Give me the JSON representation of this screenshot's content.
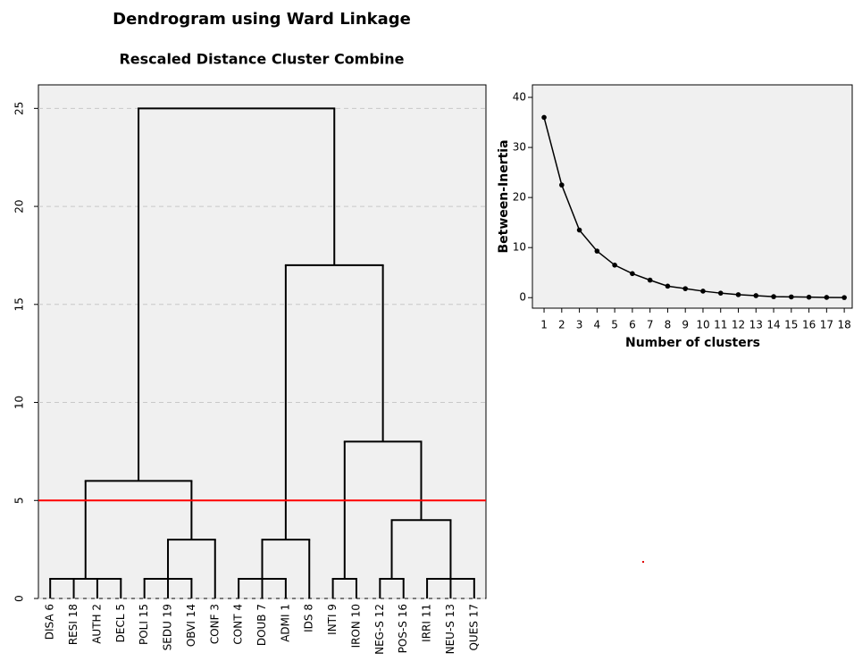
{
  "chart_data": [
    {
      "type": "dendrogram",
      "title": "Dendrogram using Ward Linkage",
      "subtitle": "Rescaled Distance Cluster Combine",
      "leaves": [
        "DISA 6",
        "RESI 18",
        "AUTH 2",
        "DECL 5",
        "POLI 15",
        "SEDU 19",
        "OBVI 14",
        "CONF 3",
        "CONT 4",
        "DOUB 7",
        "ADMI 1",
        "IDS 8",
        "INTI 9",
        "IRON 10",
        "NEG-S 12",
        "POS-S 16",
        "IRRI 11",
        "NEU-S 13",
        "QUES 17"
      ],
      "merges": [
        {
          "children": [
            0,
            1,
            2,
            3
          ],
          "height": 1
        },
        {
          "children": [
            4,
            5,
            6
          ],
          "height": 1
        },
        {
          "children": [
            20,
            7
          ],
          "height": 3
        },
        {
          "children": [
            19,
            21
          ],
          "height": 6
        },
        {
          "children": [
            8,
            9,
            10
          ],
          "height": 1
        },
        {
          "children": [
            23,
            11
          ],
          "height": 3
        },
        {
          "children": [
            12,
            13
          ],
          "height": 1
        },
        {
          "children": [
            14,
            15
          ],
          "height": 1
        },
        {
          "children": [
            16,
            17,
            18
          ],
          "height": 1
        },
        {
          "children": [
            26,
            27
          ],
          "height": 4
        },
        {
          "children": [
            25,
            28
          ],
          "height": 8
        },
        {
          "children": [
            24,
            29
          ],
          "height": 17
        },
        {
          "children": [
            22,
            30
          ],
          "height": 25
        }
      ],
      "cut_height": 5,
      "cut_color": "#ff0000",
      "color": "#000000",
      "ylim": [
        0,
        26.2
      ],
      "yticks": [
        0,
        5,
        10,
        15,
        20,
        25
      ],
      "grid": true
    },
    {
      "type": "line",
      "xlabel": "Number of clusters",
      "ylabel": "Between-Inertia",
      "x": [
        1,
        2,
        3,
        4,
        5,
        6,
        7,
        8,
        9,
        10,
        11,
        12,
        13,
        14,
        15,
        16,
        17,
        18
      ],
      "values": [
        36,
        22.5,
        13.5,
        9.3,
        6.5,
        4.8,
        3.5,
        2.3,
        1.8,
        1.3,
        0.9,
        0.6,
        0.4,
        0.2,
        0.15,
        0.1,
        0.05,
        0.02
      ],
      "color": "#000000",
      "xlim": [
        0.34,
        18.5
      ],
      "xticks": [
        1,
        2,
        3,
        4,
        5,
        6,
        7,
        8,
        9,
        10,
        11,
        12,
        13,
        14,
        15,
        16,
        17,
        18
      ],
      "ylim": [
        -2.1,
        42.5
      ],
      "yticks": [
        0,
        10,
        20,
        30,
        40
      ],
      "grid": false
    }
  ]
}
